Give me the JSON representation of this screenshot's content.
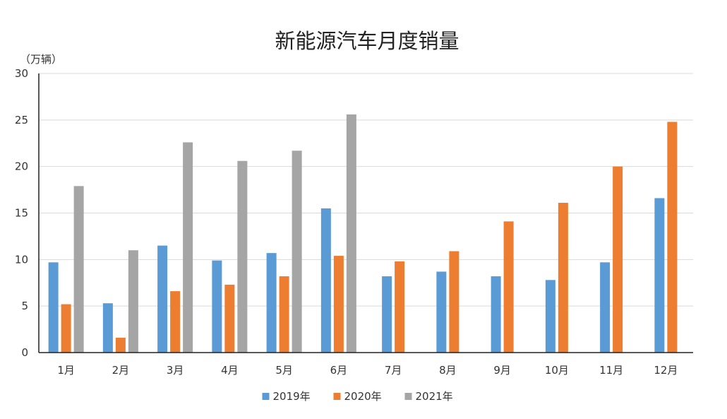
{
  "chart_data": {
    "type": "bar",
    "title": "新能源汽车月度销量",
    "unit_label": "（万辆）",
    "categories": [
      "1月",
      "2月",
      "3月",
      "4月",
      "5月",
      "6月",
      "7月",
      "8月",
      "9月",
      "10月",
      "11月",
      "12月"
    ],
    "series": [
      {
        "name": "2019年",
        "color": "#5b9bd5",
        "values": [
          9.7,
          5.3,
          11.5,
          9.9,
          10.7,
          15.5,
          8.2,
          8.7,
          8.2,
          7.8,
          9.7,
          16.6
        ]
      },
      {
        "name": "2020年",
        "color": "#ed7d31",
        "values": [
          5.2,
          1.6,
          6.6,
          7.3,
          8.2,
          10.4,
          9.8,
          10.9,
          14.1,
          16.1,
          20.0,
          24.8
        ]
      },
      {
        "name": "2021年",
        "color": "#a5a5a5",
        "values": [
          17.9,
          11.0,
          22.6,
          20.6,
          21.7,
          25.6,
          null,
          null,
          null,
          null,
          null,
          null
        ]
      }
    ],
    "ylim": [
      0,
      30
    ],
    "yticks": [
      0,
      5,
      10,
      15,
      20,
      25,
      30
    ],
    "grid": true,
    "legend": "bottom"
  }
}
